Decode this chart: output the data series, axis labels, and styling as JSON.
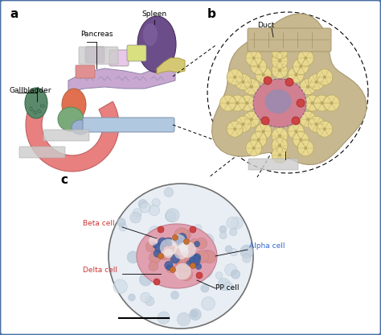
{
  "bg_color": "#f0f4f8",
  "border_color": "#4a6fa5",
  "panel_a_label": "a",
  "panel_b_label": "b",
  "panel_c_label": "c",
  "gallbladder_label": "Gallbladder",
  "pancreas_label": "Pancreas",
  "spleen_label": "Spleen",
  "duct_label": "Duct",
  "beta_cell_label": "Beta cell",
  "alpha_cell_label": "Alpha cell",
  "delta_cell_label": "Delta cell",
  "pp_cell_label": "PP cell",
  "colors": {
    "spleen": "#6b4d8a",
    "pancreas_body": "#c8a8d0",
    "pancreas_tail": "#d4c875",
    "gallbladder": "#5a8a6a",
    "duodenum": "#e88080",
    "common_bile_duct": "#d4a050",
    "stomach_bg": "#e8a0a0",
    "head_orange": "#e07050",
    "head_green": "#7aaa7a",
    "head_blue": "#9ab0d0",
    "light_gray": "#d0d8e0",
    "medium_gray": "#b0b8c0",
    "tan": "#c8b890",
    "dark_tan": "#a89870",
    "islet_pink": "#d08090",
    "islet_blue": "#8090c0",
    "acinar_yellow": "#e8d890",
    "acinar_border": "#b8a860",
    "red_cell": "#cc4444",
    "label_red": "#cc3333",
    "label_blue": "#3366cc"
  }
}
